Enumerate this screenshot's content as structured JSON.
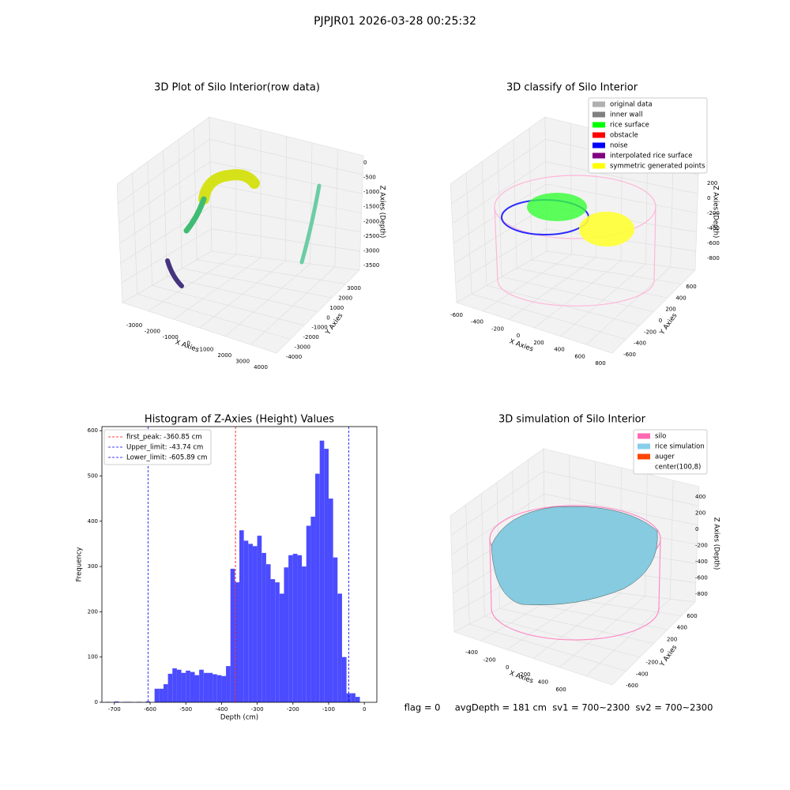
{
  "suptitle": "PJPJR01 2026-03-28 00:25:32",
  "status": "flag = 0     avgDepth = 181 cm  sv1 = 700~2300  sv2 = 700~2300",
  "chart_data": [
    {
      "type": "scatter3d",
      "title": "3D Plot of Silo Interior(row data)",
      "xlabel": "X Axies",
      "ylabel": "Y Axies",
      "zlabel": "Z Axies (Depth)",
      "xticks": [
        -3000,
        -2000,
        -1000,
        0,
        1000,
        2000,
        3000,
        4000
      ],
      "yticks": [
        -4000,
        -3000,
        -2000,
        -1000,
        0,
        1000,
        2000,
        3000
      ],
      "zticks": [
        0,
        -500,
        -1000,
        -1500,
        -2000,
        -2500,
        -3000,
        -3500
      ]
    },
    {
      "type": "scatter3d",
      "title": "3D classify of Silo Interior",
      "xlabel": "X Axies",
      "ylabel": "Y Axies",
      "zlabel": "Z Axies (Depth)",
      "xticks": [
        -600,
        -400,
        -200,
        0,
        200,
        400,
        600,
        800
      ],
      "yticks": [
        -600,
        -400,
        -200,
        0,
        200,
        400,
        600
      ],
      "zticks": [
        200,
        0,
        -200,
        -400,
        -600,
        -800
      ],
      "legend": [
        {
          "name": "original data",
          "color": "#b0b0b0"
        },
        {
          "name": "inner wall",
          "color": "#808080"
        },
        {
          "name": "rice surface",
          "color": "#00ff00"
        },
        {
          "name": "obstacle",
          "color": "#ff0000"
        },
        {
          "name": "noise",
          "color": "#0000ff"
        },
        {
          "name": "interpolated rice surface",
          "color": "#800080"
        },
        {
          "name": "symmetric generated points",
          "color": "#ffff00"
        }
      ]
    },
    {
      "type": "hist",
      "title": "Histogram of Z-Axies (Height) Values",
      "xlabel": "Depth (cm)",
      "ylabel": "Frequency",
      "color": "#4b4bff",
      "bins": [
        -725,
        -712.5,
        -700,
        -687.5,
        -675,
        -662.5,
        -650,
        -637.5,
        -625,
        -612.5,
        -600,
        -587.5,
        -575,
        -562.5,
        -550,
        -537.5,
        -525,
        -512.5,
        -500,
        -487.5,
        -475,
        -462.5,
        -450,
        -437.5,
        -425,
        -412.5,
        -400,
        -387.5,
        -375,
        -362.5,
        -350,
        -337.5,
        -325,
        -312.5,
        -300,
        -287.5,
        -275,
        -262.5,
        -250,
        -237.5,
        -225,
        -212.5,
        -200,
        -187.5,
        -175,
        -162.5,
        -150,
        -137.5,
        -125,
        -112.5,
        -100,
        -87.5,
        -75,
        -62.5,
        -50,
        -37.5,
        -25,
        -12.5,
        0,
        12.5
      ],
      "counts": [
        1,
        0,
        2,
        0,
        1,
        1,
        0,
        1,
        0,
        2,
        0,
        30,
        30,
        40,
        63,
        75,
        72,
        65,
        70,
        67,
        60,
        72,
        65,
        65,
        62,
        60,
        58,
        80,
        295,
        265,
        380,
        357,
        350,
        345,
        368,
        330,
        305,
        272,
        265,
        240,
        298,
        325,
        328,
        325,
        300,
        390,
        410,
        505,
        578,
        560,
        450,
        320,
        240,
        100,
        20,
        20,
        12,
        0,
        0
      ],
      "xlim": [
        -735,
        35
      ],
      "ylim": [
        0,
        609
      ],
      "xticks": [
        -700,
        -600,
        -500,
        -400,
        -300,
        -200,
        -100,
        0
      ],
      "yticks": [
        0,
        100,
        200,
        300,
        400,
        500,
        600
      ],
      "vlines": [
        {
          "name": "first_peak: -360.85 cm",
          "value": -360.85,
          "color": "#ff0000"
        },
        {
          "name": "Upper_limit: -43.74 cm",
          "value": -43.74,
          "color": "#0000ff"
        },
        {
          "name": "Lower_limit: -605.89 cm",
          "value": -605.89,
          "color": "#0000ff"
        }
      ],
      "legend_loc": "upper left"
    },
    {
      "type": "surface3d",
      "title": "3D simulation of Silo Interior",
      "xlabel": "X Axies",
      "ylabel": "Y Axies",
      "zlabel": "Z Axies (Depth)",
      "xticks": [
        -400,
        -200,
        0,
        200,
        400,
        600
      ],
      "yticks": [
        -600,
        -400,
        -200,
        0,
        200,
        400,
        600
      ],
      "zticks": [
        400,
        200,
        0,
        -200,
        -400,
        -600,
        -800
      ],
      "legend": [
        {
          "name": "silo",
          "color": "#ff69b4"
        },
        {
          "name": "rice simulation",
          "color": "#87ceeb"
        },
        {
          "name": "auger",
          "color": "#ff4500"
        },
        {
          "name": "center(100,8)"
        }
      ]
    }
  ]
}
